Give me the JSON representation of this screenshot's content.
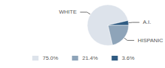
{
  "chart_data": {
    "type": "pie",
    "categories": [
      "WHITE",
      "HISPANIC",
      "A.I."
    ],
    "values": [
      75.0,
      21.4,
      3.6
    ],
    "value_labels": [
      "75.0%",
      "21.4%",
      "3.6%"
    ],
    "colors": [
      "#dde3eb",
      "#8ea4b9",
      "#2f5b82"
    ],
    "legend": "bottom"
  }
}
